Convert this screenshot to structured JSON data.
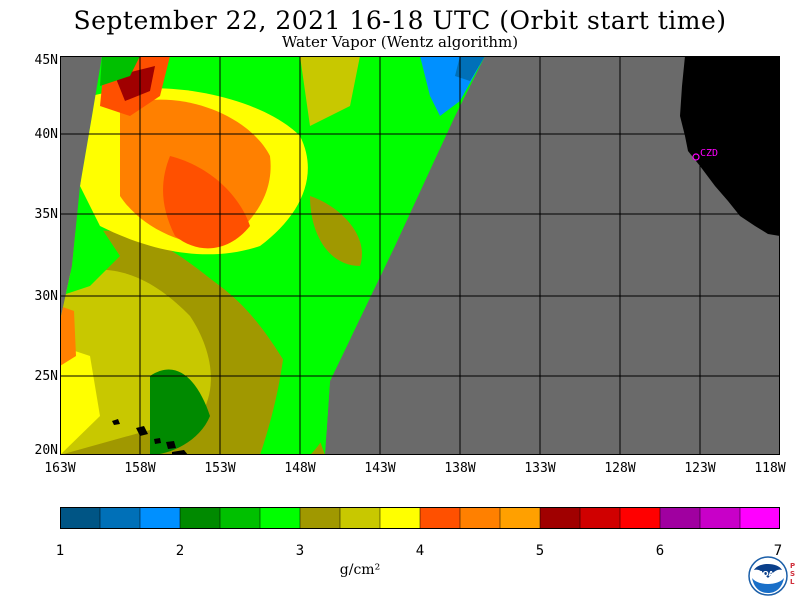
{
  "title": "September 22, 2021  16-18 UTC  (Orbit start time)",
  "subtitle": "Water Vapor (Wentz algorithm)",
  "lat_labels": [
    "45N",
    "40N",
    "35N",
    "30N",
    "25N",
    "20N"
  ],
  "lon_labels": [
    "163W",
    "158W",
    "153W",
    "148W",
    "143W",
    "138W",
    "133W",
    "128W",
    "123W",
    "118W"
  ],
  "map": {
    "lon_range": [
      -163,
      -118
    ],
    "lat_range": [
      20,
      45
    ],
    "no_data_color": "#6a6a6a",
    "land_color": "#000000",
    "gridlines": true,
    "station_label": "CZD",
    "station_color": "#ff00ff"
  },
  "colorbar": {
    "colors": [
      "#005585",
      "#0070b8",
      "#0090ff",
      "#008a00",
      "#00c000",
      "#00ff00",
      "#a09800",
      "#c8c800",
      "#ffff00",
      "#ff5000",
      "#ff8000",
      "#ffa000",
      "#a00000",
      "#d00000",
      "#ff0000",
      "#a000a0",
      "#c800c8",
      "#ff00ff"
    ],
    "tick_labels": [
      "1",
      "2",
      "3",
      "4",
      "5",
      "6",
      "7"
    ],
    "units": "g/cm²"
  },
  "logo": {
    "name": "NOAA",
    "psl": "PSL"
  }
}
